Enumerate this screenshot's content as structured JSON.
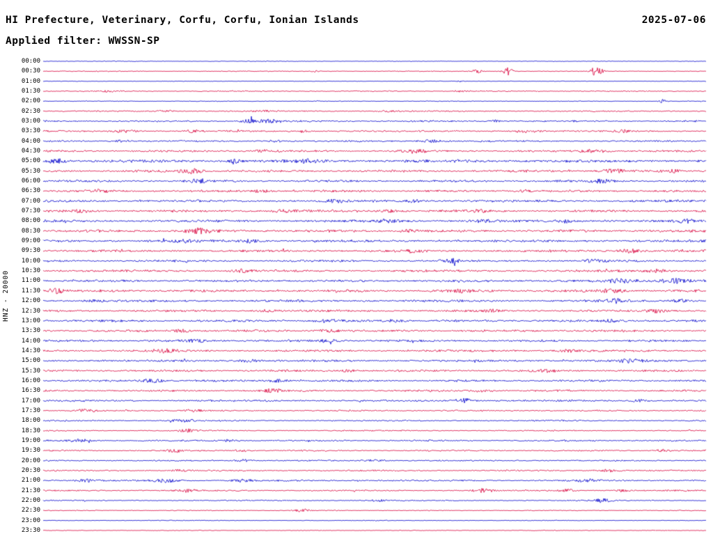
{
  "header": {
    "title": "HI Prefecture, Veterinary, Corfu, Corfu, Ionian Islands",
    "date": "2025-07-06",
    "filter_label": "Applied filter: WWSSN-SP"
  },
  "axis": {
    "station_label": "HNZ - 20000"
  },
  "chart_data": {
    "type": "line",
    "subtype": "seismogram-helicorder",
    "title": "HI Prefecture, Veterinary, Corfu, Corfu, Ionian Islands",
    "date": "2025-07-06",
    "filter": "WWSSN-SP",
    "channel": "HNZ",
    "scale": 20000,
    "row_duration_minutes": 30,
    "colors": {
      "blue": "#0000cc",
      "red": "#d8003c"
    },
    "rows": [
      {
        "label": "00:00",
        "color": "blue",
        "amp": 0.5,
        "bursts": []
      },
      {
        "label": "00:30",
        "color": "red",
        "amp": 0.7,
        "bursts": [
          {
            "x": 0.41,
            "w": 0.004,
            "a": 1.5
          },
          {
            "x": 0.655,
            "w": 0.005,
            "a": 2.5
          },
          {
            "x": 0.7,
            "w": 0.006,
            "a": 6
          },
          {
            "x": 0.835,
            "w": 0.006,
            "a": 7
          }
        ]
      },
      {
        "label": "01:00",
        "color": "blue",
        "amp": 0.5,
        "bursts": [
          {
            "x": 0.63,
            "w": 0.004,
            "a": 1.0
          }
        ]
      },
      {
        "label": "01:30",
        "color": "red",
        "amp": 0.9,
        "bursts": [
          {
            "x": 0.1,
            "w": 0.01,
            "a": 1.0
          },
          {
            "x": 0.63,
            "w": 0.008,
            "a": 1.2
          }
        ]
      },
      {
        "label": "02:00",
        "color": "blue",
        "amp": 0.6,
        "bursts": [
          {
            "x": 0.935,
            "w": 0.004,
            "a": 2.5
          }
        ]
      },
      {
        "label": "02:30",
        "color": "red",
        "amp": 1.1,
        "bursts": [
          {
            "x": 0.185,
            "w": 0.008,
            "a": 1.5
          },
          {
            "x": 0.33,
            "w": 0.01,
            "a": 1.2
          },
          {
            "x": 0.52,
            "w": 0.01,
            "a": 1.0
          }
        ]
      },
      {
        "label": "03:00",
        "color": "blue",
        "amp": 1.4,
        "bursts": [
          {
            "x": 0.315,
            "w": 0.012,
            "a": 2.8
          },
          {
            "x": 0.345,
            "w": 0.01,
            "a": 2.2
          },
          {
            "x": 0.68,
            "w": 0.006,
            "a": 1.5
          }
        ]
      },
      {
        "label": "03:30",
        "color": "red",
        "amp": 1.4,
        "bursts": [
          {
            "x": 0.125,
            "w": 0.012,
            "a": 2.2
          },
          {
            "x": 0.225,
            "w": 0.008,
            "a": 1.8
          },
          {
            "x": 0.39,
            "w": 0.008,
            "a": 1.5
          },
          {
            "x": 0.73,
            "w": 0.012,
            "a": 2.2
          },
          {
            "x": 0.875,
            "w": 0.008,
            "a": 1.5
          }
        ]
      },
      {
        "label": "04:00",
        "color": "blue",
        "amp": 1.4,
        "bursts": [
          {
            "x": 0.12,
            "w": 0.008,
            "a": 1.6
          },
          {
            "x": 0.35,
            "w": 0.008,
            "a": 1.5
          },
          {
            "x": 0.585,
            "w": 0.012,
            "a": 2.0
          }
        ]
      },
      {
        "label": "04:30",
        "color": "red",
        "amp": 1.7,
        "bursts": [
          {
            "x": 0.33,
            "w": 0.01,
            "a": 1.5
          },
          {
            "x": 0.56,
            "w": 0.012,
            "a": 2.2
          },
          {
            "x": 0.83,
            "w": 0.015,
            "a": 2.2
          }
        ]
      },
      {
        "label": "05:00",
        "color": "blue",
        "amp": 2.4,
        "bursts": [
          {
            "x": 0.02,
            "w": 0.01,
            "a": 3.0
          },
          {
            "x": 0.29,
            "w": 0.01,
            "a": 2.0
          },
          {
            "x": 0.4,
            "w": 0.012,
            "a": 2.2
          }
        ]
      },
      {
        "label": "05:30",
        "color": "red",
        "amp": 1.9,
        "bursts": [
          {
            "x": 0.225,
            "w": 0.012,
            "a": 3.0
          },
          {
            "x": 0.86,
            "w": 0.012,
            "a": 2.4
          },
          {
            "x": 0.95,
            "w": 0.008,
            "a": 1.8
          }
        ]
      },
      {
        "label": "06:00",
        "color": "blue",
        "amp": 1.8,
        "bursts": [
          {
            "x": 0.235,
            "w": 0.01,
            "a": 2.4
          },
          {
            "x": 0.845,
            "w": 0.012,
            "a": 2.6
          }
        ]
      },
      {
        "label": "06:30",
        "color": "red",
        "amp": 1.8,
        "bursts": [
          {
            "x": 0.085,
            "w": 0.01,
            "a": 1.8
          },
          {
            "x": 0.33,
            "w": 0.01,
            "a": 1.6
          },
          {
            "x": 0.73,
            "w": 0.01,
            "a": 1.6
          }
        ]
      },
      {
        "label": "07:00",
        "color": "blue",
        "amp": 2.0,
        "bursts": [
          {
            "x": 0.44,
            "w": 0.012,
            "a": 1.8
          },
          {
            "x": 0.56,
            "w": 0.01,
            "a": 1.6
          }
        ]
      },
      {
        "label": "07:30",
        "color": "red",
        "amp": 2.0,
        "bursts": [
          {
            "x": 0.06,
            "w": 0.01,
            "a": 1.8
          },
          {
            "x": 0.36,
            "w": 0.012,
            "a": 1.8
          },
          {
            "x": 0.52,
            "w": 0.01,
            "a": 1.6
          },
          {
            "x": 0.66,
            "w": 0.01,
            "a": 1.8
          }
        ]
      },
      {
        "label": "08:00",
        "color": "blue",
        "amp": 2.1,
        "bursts": [
          {
            "x": 0.52,
            "w": 0.012,
            "a": 1.8
          },
          {
            "x": 0.66,
            "w": 0.01,
            "a": 1.8
          },
          {
            "x": 0.79,
            "w": 0.01,
            "a": 1.8
          },
          {
            "x": 0.97,
            "w": 0.008,
            "a": 2.0
          }
        ]
      },
      {
        "label": "08:30",
        "color": "red",
        "amp": 2.1,
        "bursts": [
          {
            "x": 0.235,
            "w": 0.014,
            "a": 3.2
          },
          {
            "x": 0.55,
            "w": 0.01,
            "a": 1.6
          }
        ]
      },
      {
        "label": "09:00",
        "color": "blue",
        "amp": 2.1,
        "bursts": [
          {
            "x": 0.21,
            "w": 0.012,
            "a": 2.0
          },
          {
            "x": 0.31,
            "w": 0.01,
            "a": 2.0
          }
        ]
      },
      {
        "label": "09:30",
        "color": "red",
        "amp": 1.9,
        "bursts": [
          {
            "x": 0.56,
            "w": 0.01,
            "a": 1.8
          },
          {
            "x": 0.885,
            "w": 0.012,
            "a": 2.6
          }
        ]
      },
      {
        "label": "10:00",
        "color": "blue",
        "amp": 1.8,
        "bursts": [
          {
            "x": 0.615,
            "w": 0.008,
            "a": 3.5
          },
          {
            "x": 0.83,
            "w": 0.01,
            "a": 1.8
          }
        ]
      },
      {
        "label": "10:30",
        "color": "red",
        "amp": 1.9,
        "bursts": [
          {
            "x": 0.3,
            "w": 0.01,
            "a": 1.8
          },
          {
            "x": 0.925,
            "w": 0.012,
            "a": 2.4
          }
        ]
      },
      {
        "label": "11:00",
        "color": "blue",
        "amp": 1.9,
        "bursts": [
          {
            "x": 0.87,
            "w": 0.02,
            "a": 2.8
          },
          {
            "x": 0.95,
            "w": 0.015,
            "a": 2.8
          }
        ]
      },
      {
        "label": "11:30",
        "color": "red",
        "amp": 2.1,
        "bursts": [
          {
            "x": 0.02,
            "w": 0.01,
            "a": 3.2
          },
          {
            "x": 0.63,
            "w": 0.01,
            "a": 1.8
          },
          {
            "x": 0.86,
            "w": 0.012,
            "a": 2.4
          }
        ]
      },
      {
        "label": "12:00",
        "color": "blue",
        "amp": 1.9,
        "bursts": [
          {
            "x": 0.08,
            "w": 0.01,
            "a": 1.8
          },
          {
            "x": 0.865,
            "w": 0.01,
            "a": 2.6
          },
          {
            "x": 0.96,
            "w": 0.01,
            "a": 2.0
          }
        ]
      },
      {
        "label": "12:30",
        "color": "red",
        "amp": 1.8,
        "bursts": [
          {
            "x": 0.34,
            "w": 0.01,
            "a": 1.6
          },
          {
            "x": 0.68,
            "w": 0.01,
            "a": 1.6
          },
          {
            "x": 0.925,
            "w": 0.01,
            "a": 2.4
          }
        ]
      },
      {
        "label": "13:00",
        "color": "blue",
        "amp": 1.9,
        "bursts": [
          {
            "x": 0.43,
            "w": 0.012,
            "a": 1.8
          },
          {
            "x": 0.53,
            "w": 0.01,
            "a": 1.8
          },
          {
            "x": 0.86,
            "w": 0.01,
            "a": 1.8
          }
        ]
      },
      {
        "label": "13:30",
        "color": "red",
        "amp": 1.8,
        "bursts": [
          {
            "x": 0.21,
            "w": 0.01,
            "a": 1.6
          },
          {
            "x": 0.43,
            "w": 0.012,
            "a": 1.8
          }
        ]
      },
      {
        "label": "14:00",
        "color": "blue",
        "amp": 1.8,
        "bursts": [
          {
            "x": 0.23,
            "w": 0.012,
            "a": 1.8
          },
          {
            "x": 0.43,
            "w": 0.01,
            "a": 1.6
          }
        ]
      },
      {
        "label": "14:30",
        "color": "red",
        "amp": 1.8,
        "bursts": [
          {
            "x": 0.185,
            "w": 0.012,
            "a": 2.4
          },
          {
            "x": 0.79,
            "w": 0.01,
            "a": 1.8
          }
        ]
      },
      {
        "label": "15:00",
        "color": "blue",
        "amp": 1.8,
        "bursts": [
          {
            "x": 0.31,
            "w": 0.01,
            "a": 1.6
          },
          {
            "x": 0.885,
            "w": 0.012,
            "a": 2.2
          }
        ]
      },
      {
        "label": "15:30",
        "color": "red",
        "amp": 1.7,
        "bursts": [
          {
            "x": 0.46,
            "w": 0.01,
            "a": 1.6
          },
          {
            "x": 0.76,
            "w": 0.01,
            "a": 1.6
          }
        ]
      },
      {
        "label": "16:00",
        "color": "blue",
        "amp": 1.7,
        "bursts": [
          {
            "x": 0.165,
            "w": 0.012,
            "a": 2.6
          },
          {
            "x": 0.355,
            "w": 0.01,
            "a": 2.0
          }
        ]
      },
      {
        "label": "16:30",
        "color": "red",
        "amp": 1.6,
        "bursts": [
          {
            "x": 0.345,
            "w": 0.012,
            "a": 2.2
          },
          {
            "x": 0.66,
            "w": 0.01,
            "a": 1.6
          }
        ]
      },
      {
        "label": "17:00",
        "color": "blue",
        "amp": 1.6,
        "bursts": [
          {
            "x": 0.635,
            "w": 0.01,
            "a": 3.0
          },
          {
            "x": 0.9,
            "w": 0.01,
            "a": 1.8
          }
        ]
      },
      {
        "label": "17:30",
        "color": "red",
        "amp": 1.2,
        "bursts": [
          {
            "x": 0.065,
            "w": 0.01,
            "a": 2.2
          },
          {
            "x": 0.225,
            "w": 0.01,
            "a": 1.6
          }
        ]
      },
      {
        "label": "18:00",
        "color": "blue",
        "amp": 1.2,
        "bursts": [
          {
            "x": 0.21,
            "w": 0.012,
            "a": 1.8
          }
        ]
      },
      {
        "label": "18:30",
        "color": "red",
        "amp": 1.0,
        "bursts": [
          {
            "x": 0.215,
            "w": 0.01,
            "a": 2.2
          }
        ]
      },
      {
        "label": "19:00",
        "color": "blue",
        "amp": 1.3,
        "bursts": [
          {
            "x": 0.055,
            "w": 0.012,
            "a": 2.2
          },
          {
            "x": 0.28,
            "w": 0.01,
            "a": 1.6
          }
        ]
      },
      {
        "label": "19:30",
        "color": "red",
        "amp": 1.2,
        "bursts": [
          {
            "x": 0.2,
            "w": 0.01,
            "a": 2.2
          },
          {
            "x": 0.3,
            "w": 0.008,
            "a": 1.6
          },
          {
            "x": 0.935,
            "w": 0.008,
            "a": 1.8
          }
        ]
      },
      {
        "label": "20:00",
        "color": "blue",
        "amp": 1.2,
        "bursts": [
          {
            "x": 0.3,
            "w": 0.01,
            "a": 1.6
          },
          {
            "x": 0.5,
            "w": 0.01,
            "a": 1.4
          }
        ]
      },
      {
        "label": "20:30",
        "color": "red",
        "amp": 1.2,
        "bursts": [
          {
            "x": 0.21,
            "w": 0.01,
            "a": 1.6
          },
          {
            "x": 0.855,
            "w": 0.01,
            "a": 1.8
          }
        ]
      },
      {
        "label": "21:00",
        "color": "blue",
        "amp": 1.4,
        "bursts": [
          {
            "x": 0.065,
            "w": 0.008,
            "a": 1.8
          },
          {
            "x": 0.185,
            "w": 0.012,
            "a": 2.6
          },
          {
            "x": 0.3,
            "w": 0.01,
            "a": 1.8
          },
          {
            "x": 0.82,
            "w": 0.01,
            "a": 1.8
          }
        ]
      },
      {
        "label": "21:30",
        "color": "red",
        "amp": 1.2,
        "bursts": [
          {
            "x": 0.215,
            "w": 0.01,
            "a": 1.8
          },
          {
            "x": 0.665,
            "w": 0.01,
            "a": 2.8
          },
          {
            "x": 0.79,
            "w": 0.008,
            "a": 1.8
          },
          {
            "x": 0.875,
            "w": 0.008,
            "a": 1.8
          }
        ]
      },
      {
        "label": "22:00",
        "color": "blue",
        "amp": 1.0,
        "bursts": [
          {
            "x": 0.5,
            "w": 0.01,
            "a": 1.6
          },
          {
            "x": 0.845,
            "w": 0.01,
            "a": 2.6
          }
        ]
      },
      {
        "label": "22:30",
        "color": "red",
        "amp": 0.7,
        "bursts": [
          {
            "x": 0.39,
            "w": 0.008,
            "a": 2.0
          }
        ]
      },
      {
        "label": "23:00",
        "color": "blue",
        "amp": 0.6,
        "bursts": []
      },
      {
        "label": "23:30",
        "color": "red",
        "amp": 0.6,
        "bursts": []
      }
    ]
  }
}
